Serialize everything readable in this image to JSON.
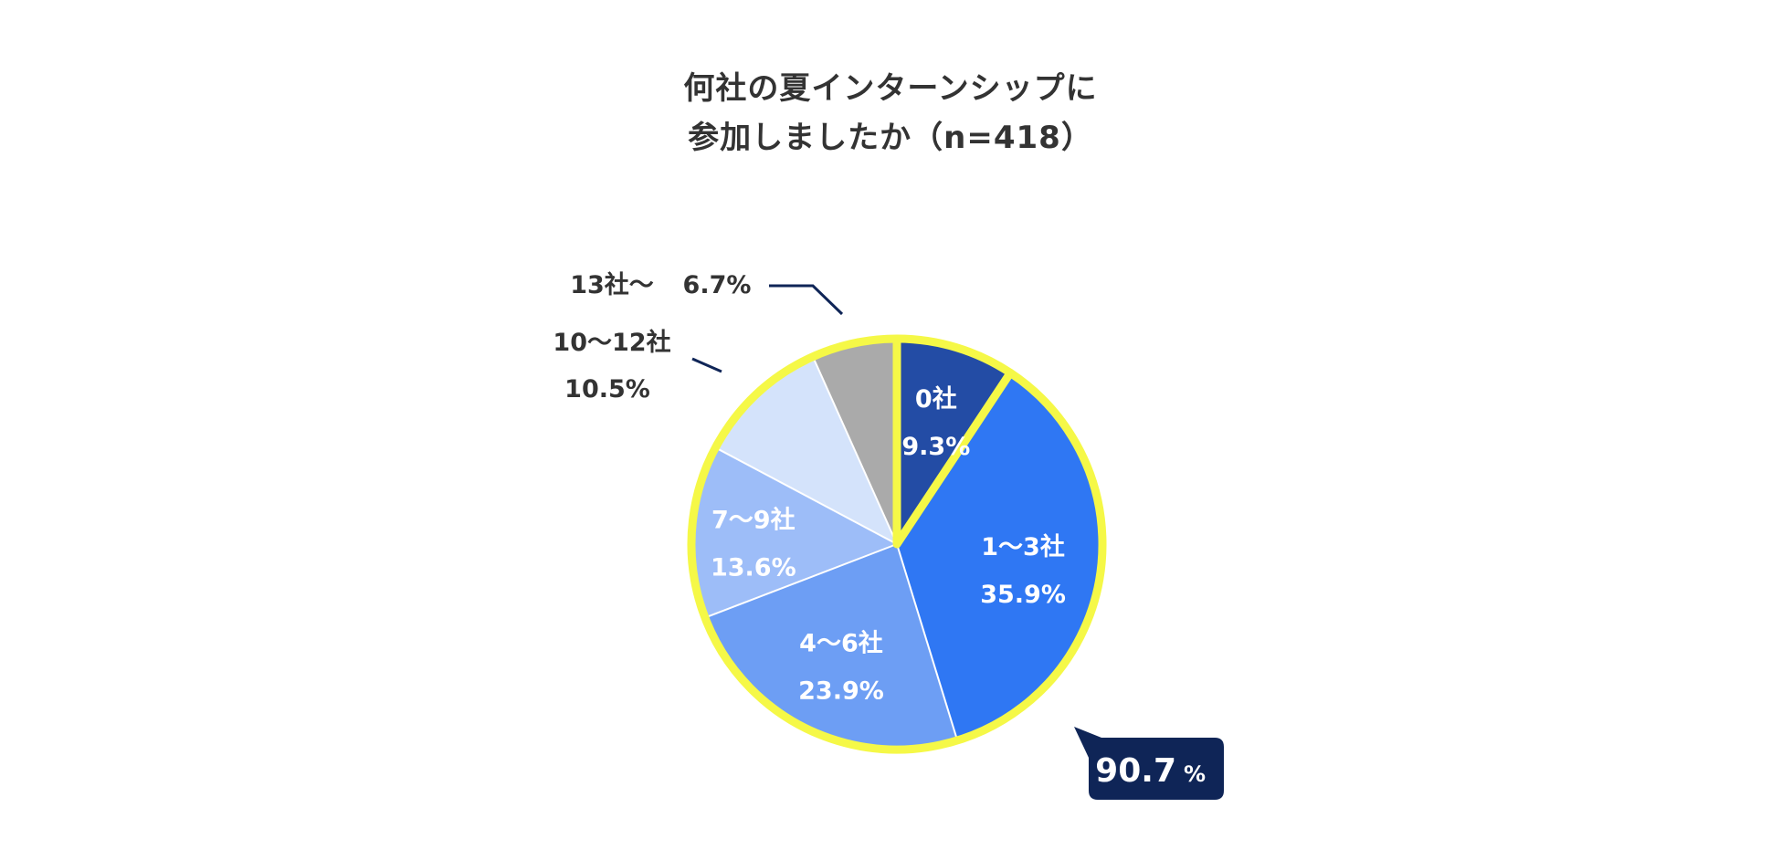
{
  "chart_data": {
    "type": "pie",
    "title_lines": [
      "何社の夏インターンシップに",
      "参加しましたか（n=418）"
    ],
    "slices": [
      {
        "name": "0社",
        "value": 9.3,
        "value_label": "9.3%",
        "color": "#234ca5",
        "text_color": "#ffffff"
      },
      {
        "name": "1〜3社",
        "value": 35.9,
        "value_label": "35.9%",
        "color": "#2f77f3",
        "text_color": "#ffffff"
      },
      {
        "name": "4〜6社",
        "value": 23.9,
        "value_label": "23.9%",
        "color": "#6d9ef4",
        "text_color": "#ffffff"
      },
      {
        "name": "7〜9社",
        "value": 13.6,
        "value_label": "13.6%",
        "color": "#9dbdf8",
        "text_color": "#ffffff"
      },
      {
        "name": "10〜12社",
        "value": 10.5,
        "value_label": "10.5%",
        "color": "#d4e3fb",
        "text_color": "#333333"
      },
      {
        "name": "13社〜",
        "value": 6.7,
        "value_label": "6.7%",
        "color": "#aaaaaa",
        "text_color": "#333333"
      }
    ],
    "highlight": {
      "label": "90.7",
      "unit": "%",
      "outline_color": "#f5f847",
      "badge_color": "#0f2557"
    }
  }
}
